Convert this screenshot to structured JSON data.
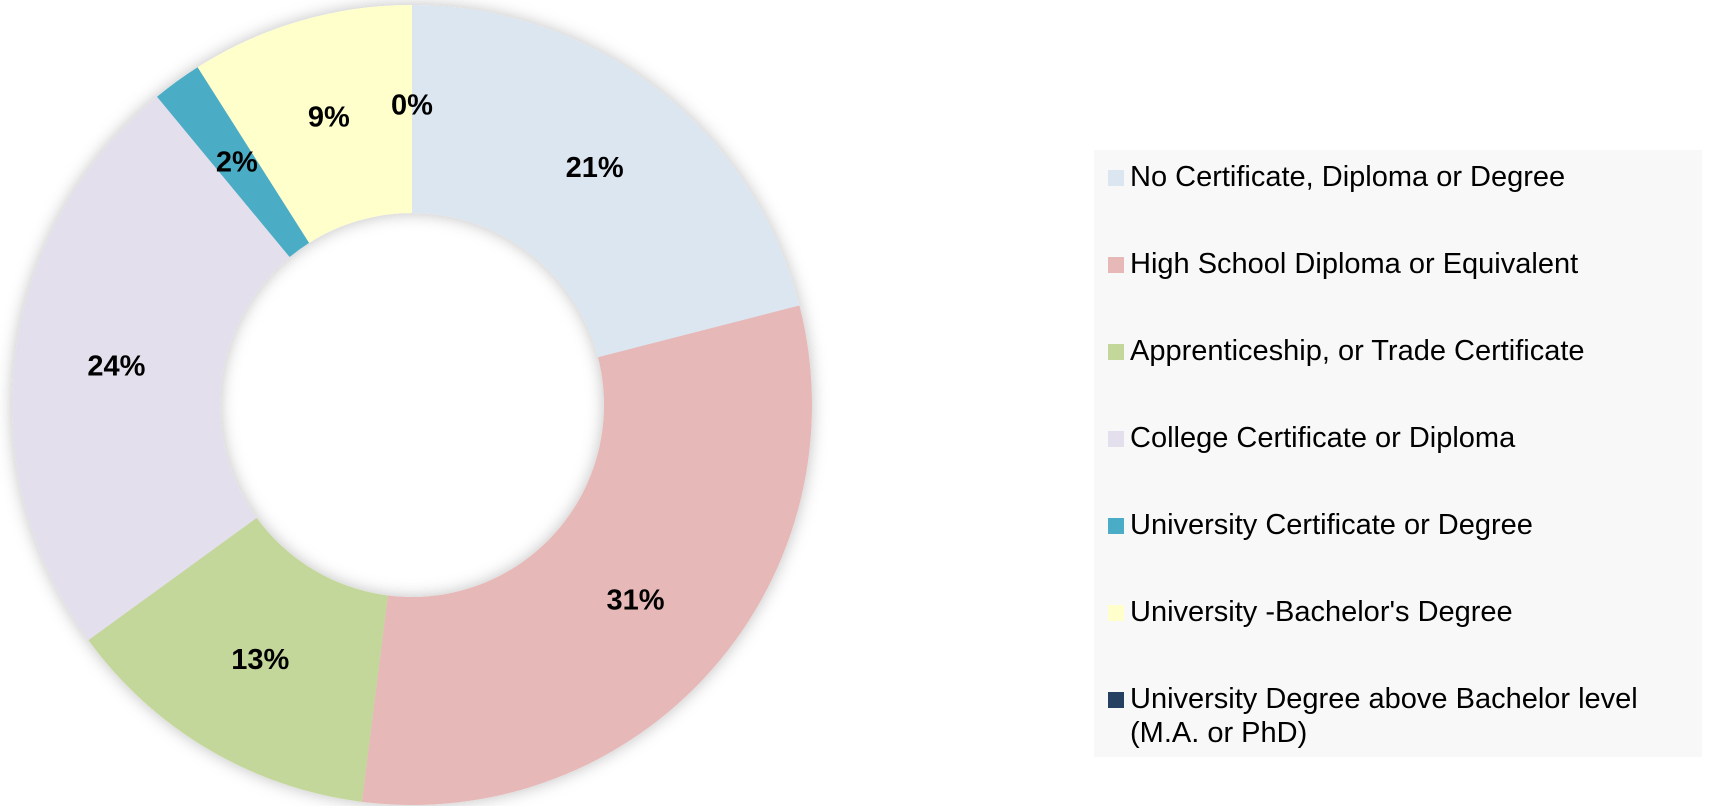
{
  "chart_data": {
    "type": "donut",
    "categories": [
      "No Certificate, Diploma or Degree",
      "High School Diploma or Equivalent",
      "Apprenticeship, or Trade Certificate",
      "College Certificate or Diploma",
      "University Certificate or Degree",
      "University -Bachelor's Degree",
      "University Degree above Bachelor level (M.A. or PhD)"
    ],
    "values": [
      21,
      31,
      13,
      24,
      2,
      9,
      0
    ],
    "value_labels": [
      "21%",
      "31%",
      "13%",
      "24%",
      "2%",
      "9%",
      "0%"
    ],
    "colors": [
      "#dce6f1",
      "#e6b9b8",
      "#c4d79b",
      "#e4dfec",
      "#4bacc6",
      "#ffffcc",
      "#254061"
    ],
    "legend": "right"
  }
}
